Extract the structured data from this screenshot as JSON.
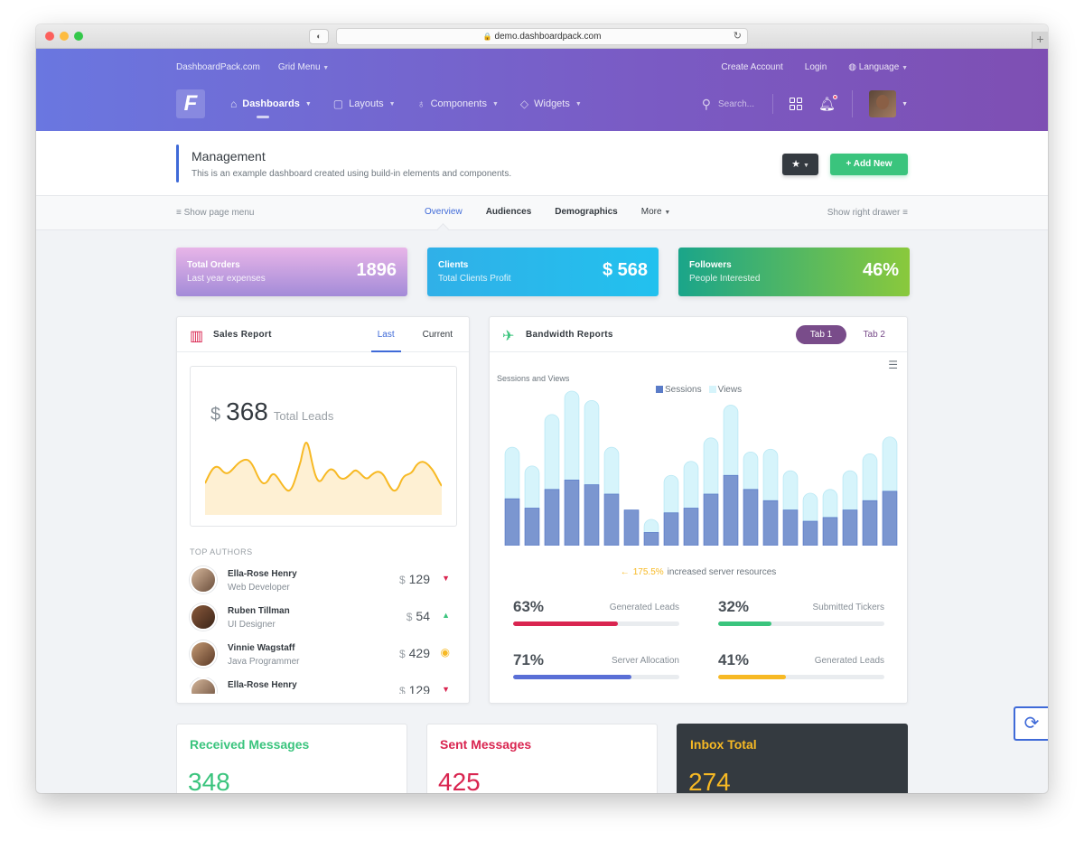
{
  "browser": {
    "url": "demo.dashboardpack.com",
    "privacy_icon": "privacy-report-icon",
    "new_tab": "+"
  },
  "topnav": {
    "brand_link": "DashboardPack.com",
    "grid_menu": "Grid Menu",
    "create_account": "Create Account",
    "login": "Login",
    "language": "Language"
  },
  "mainnav": {
    "logo": "F",
    "items": [
      {
        "label": "Dashboards",
        "icon": "dashboard-icon",
        "active": true
      },
      {
        "label": "Layouts",
        "icon": "layouts-icon"
      },
      {
        "label": "Components",
        "icon": "bulb-icon"
      },
      {
        "label": "Widgets",
        "icon": "tag-icon"
      }
    ],
    "search_placeholder": "Search..."
  },
  "page": {
    "title": "Management",
    "subtitle": "This is an example dashboard created using build-in elements and components.",
    "add_new": "Add New"
  },
  "tabs_bar": {
    "show_page_menu": "Show page menu",
    "tabs": [
      "Overview",
      "Audiences",
      "Demographics",
      "More"
    ],
    "show_right_drawer": "Show right drawer"
  },
  "tiles": [
    {
      "title": "Total Orders",
      "sub": "Last year expenses",
      "value": "1896"
    },
    {
      "title": "Clients",
      "sub": "Total Clients Profit",
      "value": "$ 568"
    },
    {
      "title": "Followers",
      "sub": "People Interested",
      "value": "46%"
    }
  ],
  "sales": {
    "title": "Sales Report",
    "tabs": [
      "Last",
      "Current"
    ],
    "currency": "$",
    "value": "368",
    "value_label": "Total Leads",
    "top_authors_label": "TOP AUTHORS",
    "authors": [
      {
        "name": "Ella-Rose Henry",
        "role": "Web Developer",
        "amount": "129",
        "trend": "down"
      },
      {
        "name": "Ruben Tillman",
        "role": "UI Designer",
        "amount": "54",
        "trend": "up"
      },
      {
        "name": "Vinnie Wagstaff",
        "role": "Java Programmer",
        "amount": "429",
        "trend": "neutral"
      },
      {
        "name": "Ella-Rose Henry",
        "role": "",
        "amount": "129",
        "trend": "down"
      }
    ],
    "colors": {
      "spark": "#f7b924",
      "fill": "#fde9c0"
    }
  },
  "chart_data": {
    "type": "bar",
    "title": "Sessions and Views",
    "stacked": true,
    "legend": "top-center",
    "series": [
      {
        "name": "Sessions",
        "color": "#7b96d0",
        "values": [
          50,
          40,
          60,
          70,
          65,
          55,
          38,
          14,
          35,
          40,
          55,
          75,
          60,
          48,
          38,
          26,
          30,
          38,
          48,
          58
        ]
      },
      {
        "name": "Views",
        "color": "#d6f4fb",
        "values": [
          55,
          45,
          80,
          95,
          90,
          50,
          0,
          14,
          40,
          50,
          60,
          75,
          40,
          55,
          42,
          30,
          30,
          42,
          50,
          58
        ]
      }
    ]
  },
  "bandwidth": {
    "title": "Bandwidth Reports",
    "tab1": "Tab 1",
    "tab2": "Tab 2",
    "note_pct": "175.5%",
    "note_text": "increased server resources",
    "progress": [
      {
        "value": "63%",
        "label": "Generated Leads",
        "fraction": 0.63,
        "color": "#d92550"
      },
      {
        "value": "32%",
        "label": "Submitted Tickers",
        "fraction": 0.32,
        "color": "#3ac47d"
      },
      {
        "value": "71%",
        "label": "Server Allocation",
        "fraction": 0.71,
        "color": "#5a6fd6"
      },
      {
        "value": "41%",
        "label": "Generated Leads",
        "fraction": 0.41,
        "color": "#f7b924"
      }
    ]
  },
  "messages": [
    {
      "title": "Received Messages",
      "value": "348"
    },
    {
      "title": "Sent Messages",
      "value": "425"
    },
    {
      "title": "Inbox Total",
      "value": "274"
    }
  ]
}
